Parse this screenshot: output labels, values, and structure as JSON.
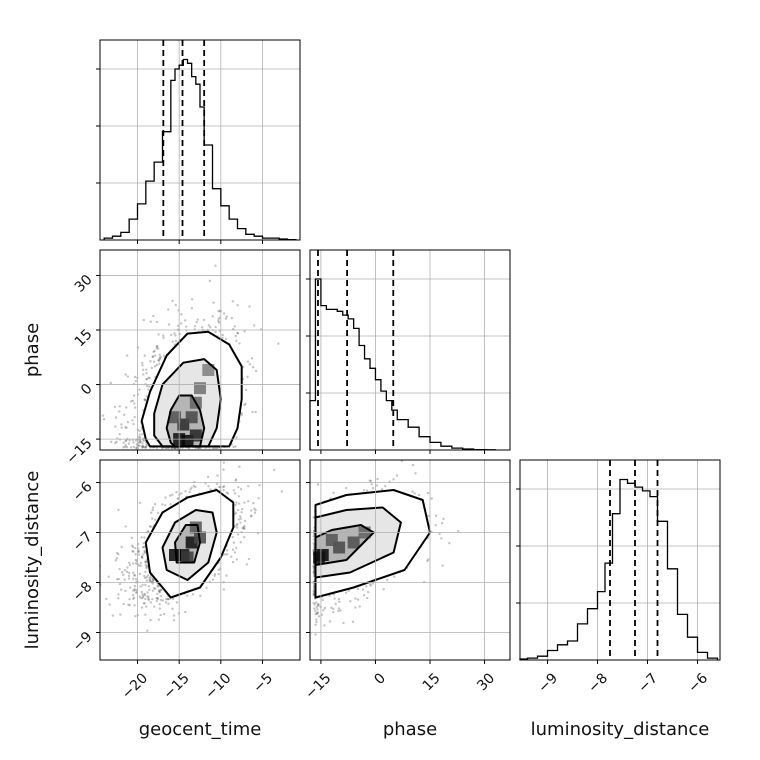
{
  "chart_data": {
    "type": "corner",
    "parameters": [
      "geocent_time",
      "phase",
      "luminosity_distance"
    ],
    "ranges": {
      "geocent_time": [
        -24.5,
        -0.5
      ],
      "phase": [
        -18,
        37
      ],
      "luminosity_distance": [
        -9.55,
        -5.55
      ]
    },
    "ticks": {
      "geocent_time": [
        -20,
        -15,
        -10,
        -5
      ],
      "phase": [
        -15,
        0,
        15,
        30
      ],
      "luminosity_distance": [
        -9,
        -8,
        -7,
        -6
      ]
    },
    "tick_labels": {
      "geocent_time": [
        "−20",
        "−15",
        "−10",
        "−5"
      ],
      "phase": [
        "−15",
        "0",
        "15",
        "30"
      ],
      "luminosity_distance": [
        "−9",
        "−8",
        "−7",
        "−6"
      ]
    },
    "quantiles": {
      "geocent_time": [
        -16.9,
        -14.6,
        -12.0
      ],
      "phase": [
        -15.8,
        -7.8,
        4.9
      ],
      "luminosity_distance": [
        -7.75,
        -7.25,
        -6.8
      ]
    },
    "histograms": {
      "geocent_time": {
        "edges": [
          -24,
          -23,
          -22,
          -21,
          -20,
          -19,
          -18,
          -17,
          -16,
          -15.5,
          -15,
          -14.5,
          -14,
          -13.5,
          -13,
          -12.5,
          -12,
          -11,
          -10,
          -9,
          -8,
          -7,
          -6,
          -5,
          -4,
          -3,
          -2,
          -1
        ],
        "counts": [
          0.01,
          0.02,
          0.04,
          0.11,
          0.19,
          0.31,
          0.41,
          0.57,
          0.84,
          0.9,
          0.92,
          0.95,
          0.93,
          0.86,
          0.82,
          0.7,
          0.5,
          0.27,
          0.18,
          0.11,
          0.06,
          0.03,
          0.02,
          0.01,
          0.01,
          0.005,
          0.002
        ]
      },
      "phase": {
        "edges": [
          -18,
          -16.5,
          -15,
          -13.5,
          -12,
          -10.5,
          -9,
          -7.5,
          -6,
          -4.5,
          -3,
          -1.5,
          0,
          1.5,
          3,
          4.5,
          6,
          9,
          12,
          15,
          18,
          21,
          24,
          27,
          30,
          33
        ],
        "counts": [
          0.26,
          0.9,
          0.76,
          0.74,
          0.74,
          0.73,
          0.71,
          0.69,
          0.64,
          0.55,
          0.48,
          0.43,
          0.37,
          0.31,
          0.26,
          0.21,
          0.16,
          0.12,
          0.07,
          0.04,
          0.02,
          0.01,
          0.005,
          0.002,
          0.001
        ]
      },
      "luminosity_distance": {
        "edges": [
          -9.55,
          -9.4,
          -9.2,
          -9.0,
          -8.8,
          -8.6,
          -8.4,
          -8.2,
          -8.0,
          -7.85,
          -7.7,
          -7.55,
          -7.4,
          -7.25,
          -7.1,
          -6.95,
          -6.8,
          -6.6,
          -6.4,
          -6.2,
          -6.0,
          -5.8,
          -5.6
        ],
        "counts": [
          0.005,
          0.01,
          0.02,
          0.05,
          0.08,
          0.1,
          0.19,
          0.27,
          0.36,
          0.51,
          0.77,
          0.95,
          0.93,
          0.91,
          0.89,
          0.86,
          0.73,
          0.48,
          0.24,
          0.12,
          0.04,
          0.01
        ]
      }
    },
    "pairs": [
      {
        "x": "geocent_time",
        "y": "phase",
        "center": [
          -14.5,
          -6
        ],
        "sigma": [
          3.2,
          11
        ],
        "corr": 0.35,
        "floor": -17.5,
        "contours": [
          [
            [
              -15.5,
              -17
            ],
            [
              -12.5,
              -17
            ],
            [
              -12,
              -12
            ],
            [
              -12.5,
              -7
            ],
            [
              -13.5,
              -3
            ],
            [
              -15,
              -3
            ],
            [
              -16,
              -7
            ],
            [
              -16.5,
              -12
            ],
            [
              -16,
              -16
            ]
          ],
          [
            [
              -17,
              -17
            ],
            [
              -11.5,
              -17
            ],
            [
              -10.5,
              -12
            ],
            [
              -10,
              -4
            ],
            [
              -10.5,
              4
            ],
            [
              -12,
              7
            ],
            [
              -14.5,
              6
            ],
            [
              -17,
              0
            ],
            [
              -18,
              -8
            ],
            [
              -18,
              -14
            ]
          ],
          [
            [
              -18.5,
              -17
            ],
            [
              -9,
              -17
            ],
            [
              -8,
              -12
            ],
            [
              -7.5,
              -4
            ],
            [
              -7.5,
              5
            ],
            [
              -9,
              11
            ],
            [
              -11.5,
              14.5
            ],
            [
              -14,
              14
            ],
            [
              -16.5,
              8
            ],
            [
              -18.5,
              -2
            ],
            [
              -19.5,
              -10
            ],
            [
              -19,
              -15
            ]
          ]
        ],
        "blobs": [
          [
            -15,
            -15,
            0.9
          ],
          [
            -14,
            -15.5,
            0.95
          ],
          [
            -13,
            -14,
            0.75
          ],
          [
            -14.5,
            -11,
            0.7
          ],
          [
            -13.5,
            -9,
            0.5
          ],
          [
            -15.5,
            -9,
            0.4
          ],
          [
            -13,
            -5,
            0.3
          ],
          [
            -12.5,
            -1,
            0.2
          ],
          [
            -11.5,
            4,
            0.1
          ]
        ]
      },
      {
        "x": "geocent_time",
        "y": "luminosity_distance",
        "center": [
          -14.5,
          -7.3
        ],
        "sigma": [
          3.3,
          0.55
        ],
        "corr": 0.55,
        "floor": null,
        "contours": [
          [
            [
              -15.3,
              -7.6
            ],
            [
              -13.2,
              -7.6
            ],
            [
              -12.5,
              -7.2
            ],
            [
              -12.8,
              -6.85
            ],
            [
              -14.2,
              -6.85
            ],
            [
              -15.5,
              -7.2
            ]
          ],
          [
            [
              -16.5,
              -7.75
            ],
            [
              -14,
              -7.95
            ],
            [
              -11.5,
              -7.6
            ],
            [
              -10.5,
              -7.0
            ],
            [
              -11,
              -6.6
            ],
            [
              -13,
              -6.55
            ],
            [
              -15.5,
              -6.8
            ],
            [
              -17,
              -7.3
            ]
          ],
          [
            [
              -18.5,
              -7.8
            ],
            [
              -16,
              -8.3
            ],
            [
              -12.5,
              -8.1
            ],
            [
              -10,
              -7.5
            ],
            [
              -8.5,
              -6.9
            ],
            [
              -8.5,
              -6.4
            ],
            [
              -10.5,
              -6.15
            ],
            [
              -14,
              -6.3
            ],
            [
              -17,
              -6.6
            ],
            [
              -19,
              -7.2
            ]
          ]
        ],
        "blobs": [
          [
            -13.5,
            -7.2,
            0.9
          ],
          [
            -14.5,
            -7.45,
            0.85
          ],
          [
            -15.5,
            -7.45,
            0.95
          ],
          [
            -14,
            -7.5,
            0.6
          ],
          [
            -13,
            -6.9,
            0.4
          ],
          [
            -12.5,
            -7.1,
            0.5
          ]
        ]
      },
      {
        "x": "phase",
        "y": "luminosity_distance",
        "center": [
          -7,
          -7.3
        ],
        "sigma": [
          9,
          0.55
        ],
        "corr": 0.45,
        "floor": -17,
        "contours": [
          [
            [
              -16.5,
              -7.65
            ],
            [
              -8,
              -7.55
            ],
            [
              -0.5,
              -7.0
            ],
            [
              -4,
              -6.85
            ],
            [
              -12,
              -6.95
            ],
            [
              -16.5,
              -7.1
            ]
          ],
          [
            [
              -16.5,
              -7.9
            ],
            [
              -7,
              -7.8
            ],
            [
              5,
              -7.4
            ],
            [
              7,
              -6.8
            ],
            [
              2,
              -6.5
            ],
            [
              -8,
              -6.55
            ],
            [
              -16.5,
              -6.7
            ]
          ],
          [
            [
              -16.5,
              -8.3
            ],
            [
              -6,
              -8.1
            ],
            [
              8,
              -7.75
            ],
            [
              15,
              -7.0
            ],
            [
              13,
              -6.35
            ],
            [
              5,
              -6.15
            ],
            [
              -8,
              -6.25
            ],
            [
              -16.5,
              -6.45
            ]
          ]
        ],
        "blobs": [
          [
            -14.5,
            -7.45,
            0.95
          ],
          [
            -15.5,
            -7.5,
            0.9
          ],
          [
            -10,
            -7.3,
            0.5
          ],
          [
            -6,
            -7.2,
            0.45
          ],
          [
            -3,
            -7.0,
            0.3
          ],
          [
            -12,
            -7.15,
            0.4
          ]
        ]
      }
    ]
  }
}
